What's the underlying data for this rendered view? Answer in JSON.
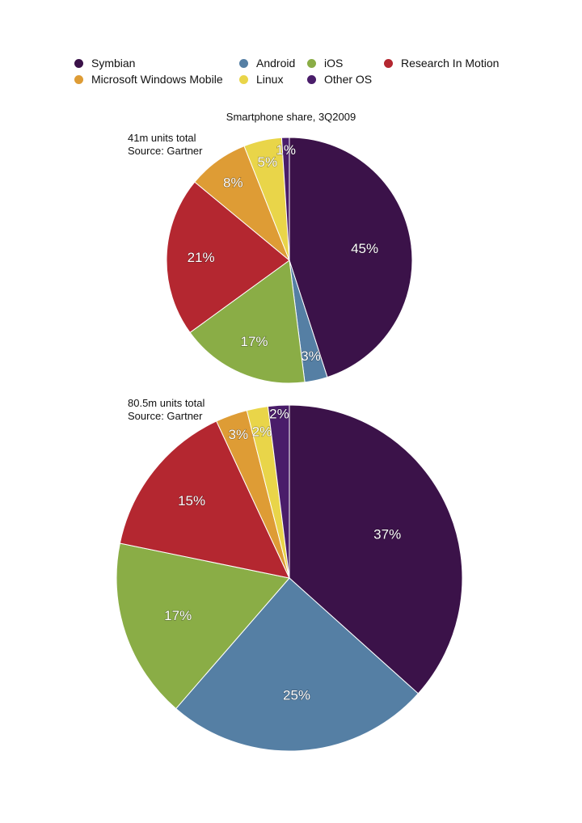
{
  "legend": [
    {
      "name": "Symbian",
      "color": "#3b1249"
    },
    {
      "name": "Android",
      "color": "#557fa4"
    },
    {
      "name": "iOS",
      "color": "#8aad46"
    },
    {
      "name": "Research In Motion",
      "color": "#b42730"
    },
    {
      "name": "Microsoft Windows Mobile",
      "color": "#de9c35"
    },
    {
      "name": "Linux",
      "color": "#e9d549"
    },
    {
      "name": "Other OS",
      "color": "#4a1d6a"
    }
  ],
  "chart_data": [
    {
      "type": "pie",
      "title": "Smartphone share, 3Q2009",
      "note_lines": [
        "41m units total",
        "Source: Gartner"
      ],
      "start_angle_deg": 0,
      "direction": "clockwise",
      "slices": [
        {
          "category": "Symbian",
          "value": 45,
          "label": "45%"
        },
        {
          "category": "Android",
          "value": 3,
          "label": "3%"
        },
        {
          "category": "iOS",
          "value": 17,
          "label": "17%"
        },
        {
          "category": "Research In Motion",
          "value": 21,
          "label": "21%"
        },
        {
          "category": "Microsoft Windows Mobile",
          "value": 8,
          "label": "8%"
        },
        {
          "category": "Linux",
          "value": 5,
          "label": "5%"
        },
        {
          "category": "Other OS",
          "value": 1,
          "label": "1%"
        }
      ]
    },
    {
      "type": "pie",
      "title": "",
      "note_lines": [
        "80.5m units total",
        "Source: Gartner"
      ],
      "start_angle_deg": 0,
      "direction": "clockwise",
      "slices": [
        {
          "category": "Symbian",
          "value": 37,
          "label": "37%"
        },
        {
          "category": "Android",
          "value": 25,
          "label": "25%"
        },
        {
          "category": "iOS",
          "value": 17,
          "label": "17%"
        },
        {
          "category": "Research In Motion",
          "value": 15,
          "label": "15%"
        },
        {
          "category": "Microsoft Windows Mobile",
          "value": 3,
          "label": "3%"
        },
        {
          "category": "Linux",
          "value": 2,
          "label": "2%"
        },
        {
          "category": "Other OS",
          "value": 2,
          "label": "2%"
        }
      ]
    }
  ]
}
